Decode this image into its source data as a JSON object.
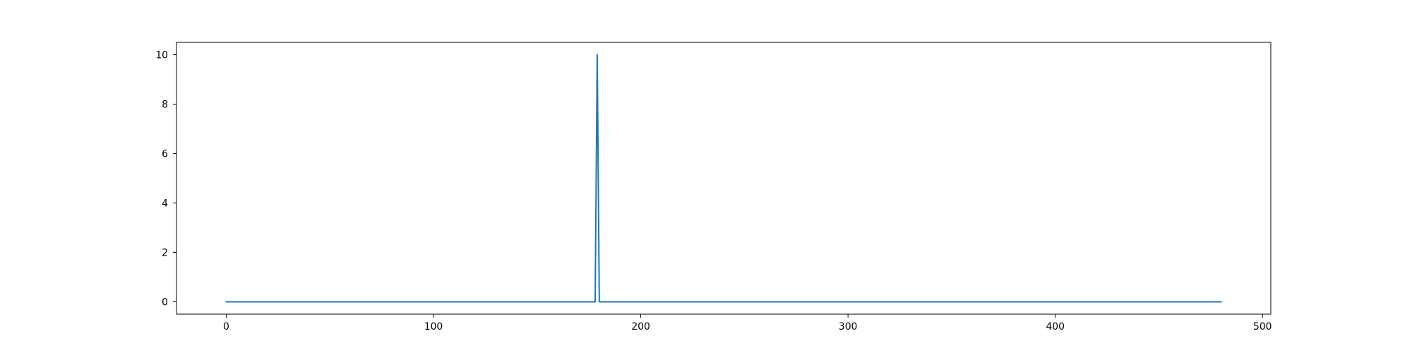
{
  "chart_data": {
    "type": "line",
    "title": "",
    "xlabel": "",
    "ylabel": "",
    "xlim": [
      -24,
      504
    ],
    "ylim": [
      -0.5,
      10.5
    ],
    "grid": false,
    "legend": "none",
    "x_ticks": [
      0,
      100,
      200,
      300,
      400,
      500
    ],
    "y_ticks": [
      0,
      2,
      4,
      6,
      8,
      10
    ],
    "series": [
      {
        "color": "#1f77b4",
        "x": [
          0,
          178,
          179,
          180,
          480
        ],
        "y": [
          0,
          0,
          10,
          0,
          0
        ]
      }
    ]
  }
}
